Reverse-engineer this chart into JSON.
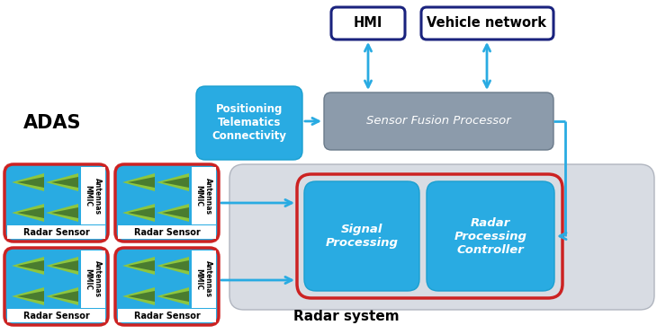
{
  "bg_color": "#ffffff",
  "adas_label": "ADAS",
  "hmi_label": "HMI",
  "vehicle_network_label": "Vehicle network",
  "positioning_label": "Positioning\nTelematics\nConnectivity",
  "sensor_fusion_label": "Sensor Fusion Processor",
  "signal_processing_label": "Signal\nProcessing",
  "radar_processing_label": "Radar\nProcessing\nController",
  "radar_system_label": "Radar system",
  "radar_sensor_label": "Radar Sensor",
  "antennas_label": "Antennas\nMMIC",
  "cyan_color": "#29abe2",
  "cyan_dark": "#1a9fd0",
  "gray_color": "#8c9bab",
  "gray_light": "#d0d3d8",
  "red_color": "#cc2222",
  "dark_blue": "#1a237e",
  "green_bright": "#8dc63f",
  "green_dark": "#4a7c2f",
  "white": "#ffffff",
  "black": "#000000",
  "radar_bg": "#d8dce3"
}
